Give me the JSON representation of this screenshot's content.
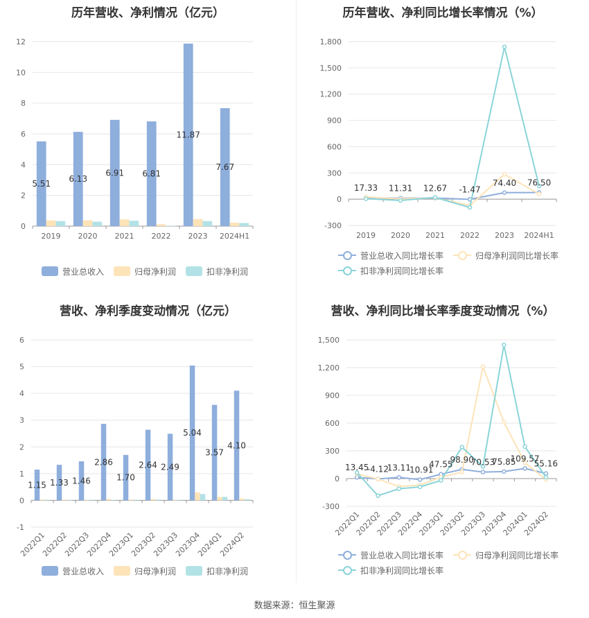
{
  "source": "数据来源：恒生聚源",
  "chart_data": [
    {
      "type": "bar",
      "title": "历年营收、净利情况（亿元）",
      "categories": [
        "2019",
        "2020",
        "2021",
        "2022",
        "2023",
        "2024H1"
      ],
      "ylim": [
        0,
        12
      ],
      "yticks": [
        0,
        2,
        4,
        6,
        8,
        10,
        12
      ],
      "grid": true,
      "legend_position": "bottom",
      "series": [
        {
          "name": "营业总收入",
          "color": "#8eaedc",
          "values": [
            5.51,
            6.13,
            6.91,
            6.81,
            11.87,
            7.67
          ],
          "labels": [
            "5.51",
            "6.13",
            "6.91",
            "6.81",
            "11.87",
            "7.67"
          ]
        },
        {
          "name": "归母净利润",
          "color": "#fde3b8",
          "values": [
            0.37,
            0.38,
            0.44,
            0.12,
            0.46,
            0.22
          ]
        },
        {
          "name": "扣非净利润",
          "color": "#b3e2e6",
          "values": [
            0.33,
            0.29,
            0.35,
            0.02,
            0.33,
            0.2
          ]
        }
      ]
    },
    {
      "type": "line",
      "title": "历年营收、净利同比增长率情况（%）",
      "categories": [
        "2019",
        "2020",
        "2021",
        "2022",
        "2023",
        "2024H1"
      ],
      "ylim": [
        -300,
        1800
      ],
      "yticks": [
        -300,
        0,
        300,
        600,
        900,
        1200,
        1500,
        1800
      ],
      "ytick_labels": [
        "-300",
        "0",
        "300",
        "600",
        "900",
        "1,200",
        "1,500",
        "1,800"
      ],
      "grid": true,
      "legend_position": "bottom",
      "series": [
        {
          "name": "营业总收入同比增长率",
          "color": "#8eaedc",
          "values": [
            17.33,
            11.31,
            12.67,
            -1.47,
            74.4,
            76.5
          ],
          "labels": [
            "17.33",
            "11.31",
            "12.67",
            "-1.47",
            "74.40",
            "76.50"
          ]
        },
        {
          "name": "归母净利润同比增长率",
          "color": "#fde3b8",
          "values": [
            25,
            3,
            16,
            -72,
            283,
            60
          ]
        },
        {
          "name": "扣非净利润同比增长率",
          "color": "#8ad4d8",
          "values": [
            5,
            -15,
            20,
            -95,
            1740,
            150
          ]
        }
      ]
    },
    {
      "type": "bar",
      "title": "营收、净利季度变动情况（亿元）",
      "categories": [
        "2022Q1",
        "2022Q2",
        "2022Q3",
        "2022Q4",
        "2023Q1",
        "2023Q2",
        "2023Q3",
        "2023Q4",
        "2024Q1",
        "2024Q2"
      ],
      "ylim": [
        -1,
        6
      ],
      "yticks": [
        -1,
        0,
        1,
        2,
        3,
        4,
        5,
        6
      ],
      "grid": true,
      "legend_position": "bottom",
      "series": [
        {
          "name": "营业总收入",
          "color": "#8eaedc",
          "values": [
            1.15,
            1.33,
            1.46,
            2.86,
            1.7,
            2.64,
            2.49,
            5.04,
            3.57,
            4.1
          ],
          "labels": [
            "1.15",
            "1.33",
            "1.46",
            "2.86",
            "1.70",
            "2.64",
            "2.49",
            "5.04",
            "3.57",
            "4.10"
          ]
        },
        {
          "name": "归母净利润",
          "color": "#fde3b8",
          "values": [
            0.03,
            0.02,
            0.01,
            0.05,
            0.03,
            0.05,
            0.01,
            0.3,
            0.13,
            0.07
          ]
        },
        {
          "name": "扣非净利润",
          "color": "#b3e2e6",
          "values": [
            0.02,
            0.01,
            -0.01,
            0.0,
            0.02,
            0.03,
            0.0,
            0.24,
            0.13,
            0.04
          ]
        }
      ]
    },
    {
      "type": "line",
      "title": "营收、净利同比增长率季度变动情况（%）",
      "categories": [
        "2022Q1",
        "2022Q2",
        "2022Q3",
        "2022Q4",
        "2023Q1",
        "2023Q2",
        "2023Q3",
        "2023Q4",
        "2024Q1",
        "2024Q2"
      ],
      "ylim": [
        -300,
        1500
      ],
      "yticks": [
        -300,
        0,
        300,
        600,
        900,
        1200,
        1500
      ],
      "ytick_labels": [
        "-300",
        "0",
        "300",
        "600",
        "900",
        "1,200",
        "1,500"
      ],
      "grid": true,
      "legend_position": "bottom",
      "series": [
        {
          "name": "营业总收入同比增长率",
          "color": "#8eaedc",
          "values": [
            13.45,
            -4.12,
            13.11,
            -10.91,
            47.55,
            98.9,
            70.53,
            75.85,
            109.57,
            55.16
          ],
          "labels": [
            "13.45",
            "-4.12",
            "13.11",
            "-10.91",
            "47.55",
            "98.90",
            "70.53",
            "75.85",
            "109.57",
            "55.16"
          ]
        },
        {
          "name": "归母净利润同比增长率",
          "color": "#fde3b8",
          "values": [
            50,
            -5,
            -85,
            -70,
            15,
            70,
            1210,
            610,
            170,
            -10
          ]
        },
        {
          "name": "扣非净利润同比增长率",
          "color": "#8ad4d8",
          "values": [
            65,
            -185,
            -110,
            -90,
            -20,
            340,
            130,
            1445,
            345,
            15
          ]
        }
      ]
    }
  ]
}
